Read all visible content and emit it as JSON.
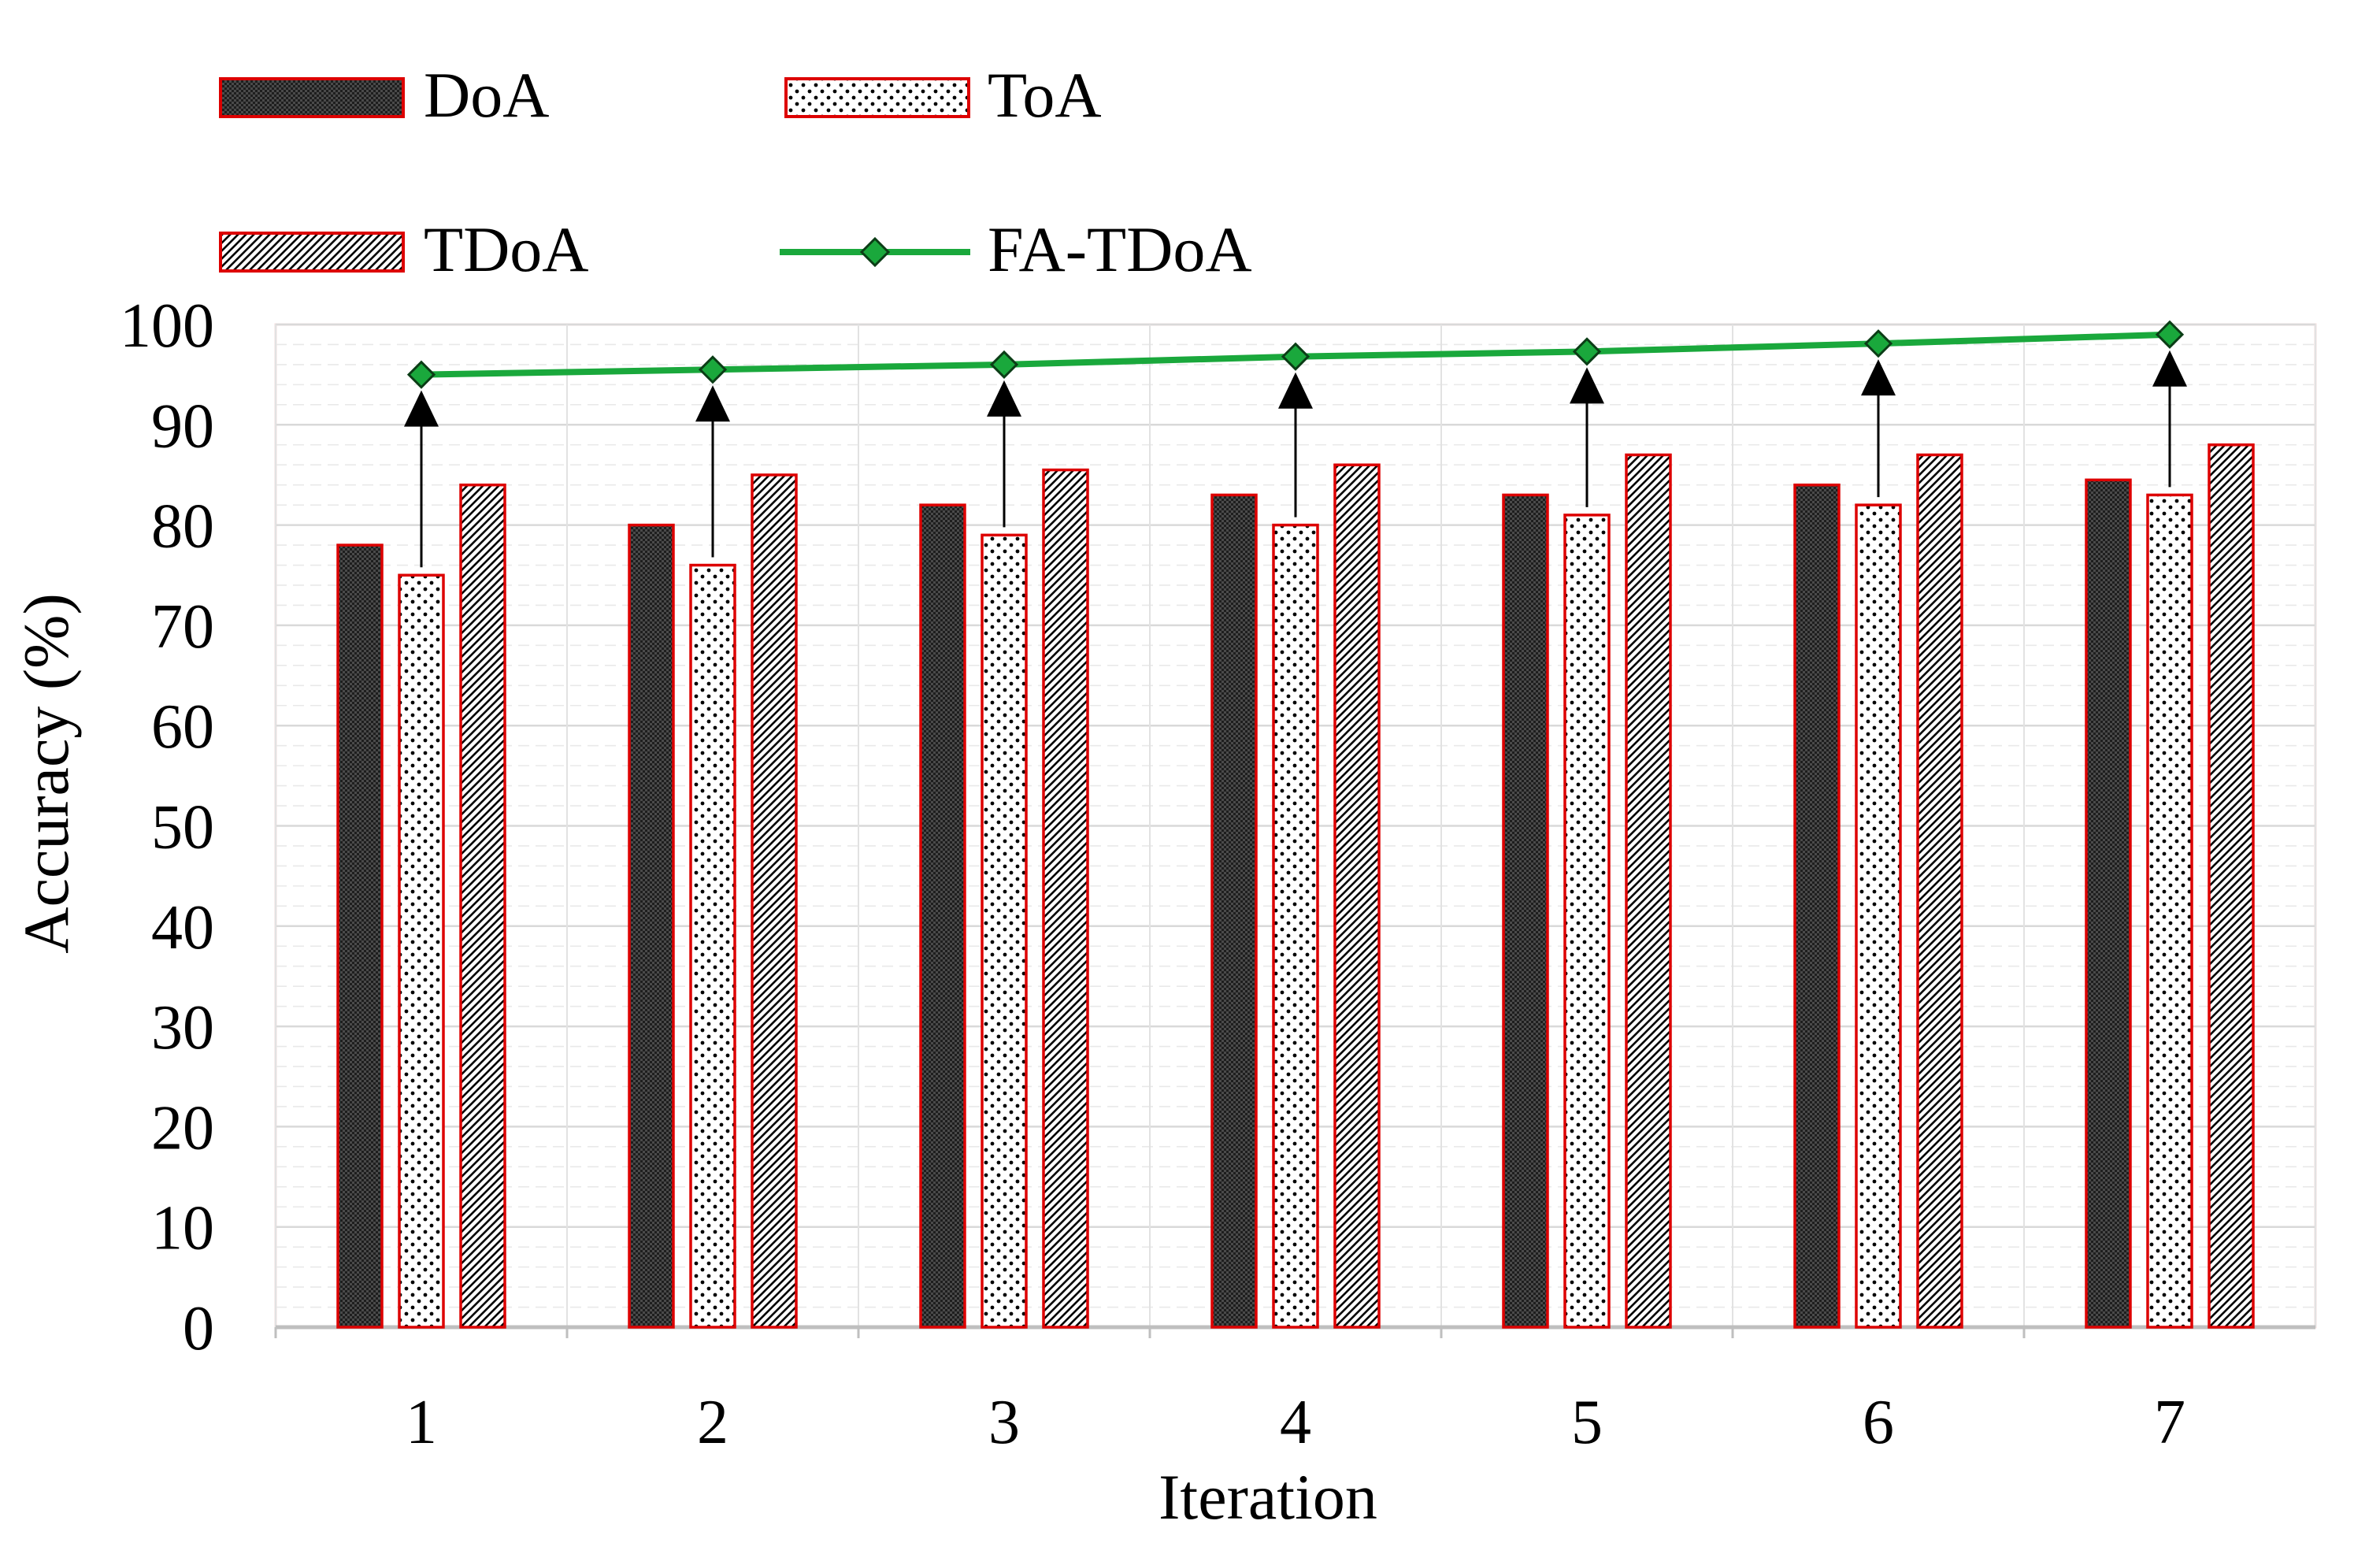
{
  "chart_data": {
    "type": "bar",
    "title": "",
    "xlabel": "Iteration",
    "ylabel": "Accuracy (%)",
    "categories": [
      "1",
      "2",
      "3",
      "4",
      "5",
      "6",
      "7"
    ],
    "ylim": [
      0,
      100
    ],
    "yticks": [
      "0",
      "10",
      "20",
      "30",
      "40",
      "50",
      "60",
      "70",
      "80",
      "90",
      "100"
    ],
    "grid": true,
    "legend_position": "top-left",
    "series": [
      {
        "name": "DoA",
        "kind": "bar",
        "pattern": "dense-crosshatch",
        "values": [
          78,
          80,
          82,
          83,
          83,
          84,
          84.5
        ]
      },
      {
        "name": "ToA",
        "kind": "bar",
        "pattern": "dots",
        "values": [
          75,
          76,
          79,
          80,
          81,
          82,
          83
        ]
      },
      {
        "name": "TDoA",
        "kind": "bar",
        "pattern": "diagonal-hatch",
        "values": [
          84,
          85,
          85.5,
          86,
          87,
          87,
          88
        ]
      },
      {
        "name": "FA-TDoA",
        "kind": "line",
        "marker": "diamond",
        "values": [
          95,
          95.5,
          96,
          96.8,
          97.3,
          98.1,
          99
        ]
      }
    ],
    "annotations": "Upward arrows drawn from each ToA bar to the FA-TDoA point"
  },
  "colors": {
    "bar_border": "#dd0000",
    "line": "#1aa83c",
    "marker": "#1aa83c",
    "grid": "#d9d9d9",
    "axis": "#bfbfbf",
    "arrow": "#000000",
    "dark_fill": "#3a3a3a"
  }
}
